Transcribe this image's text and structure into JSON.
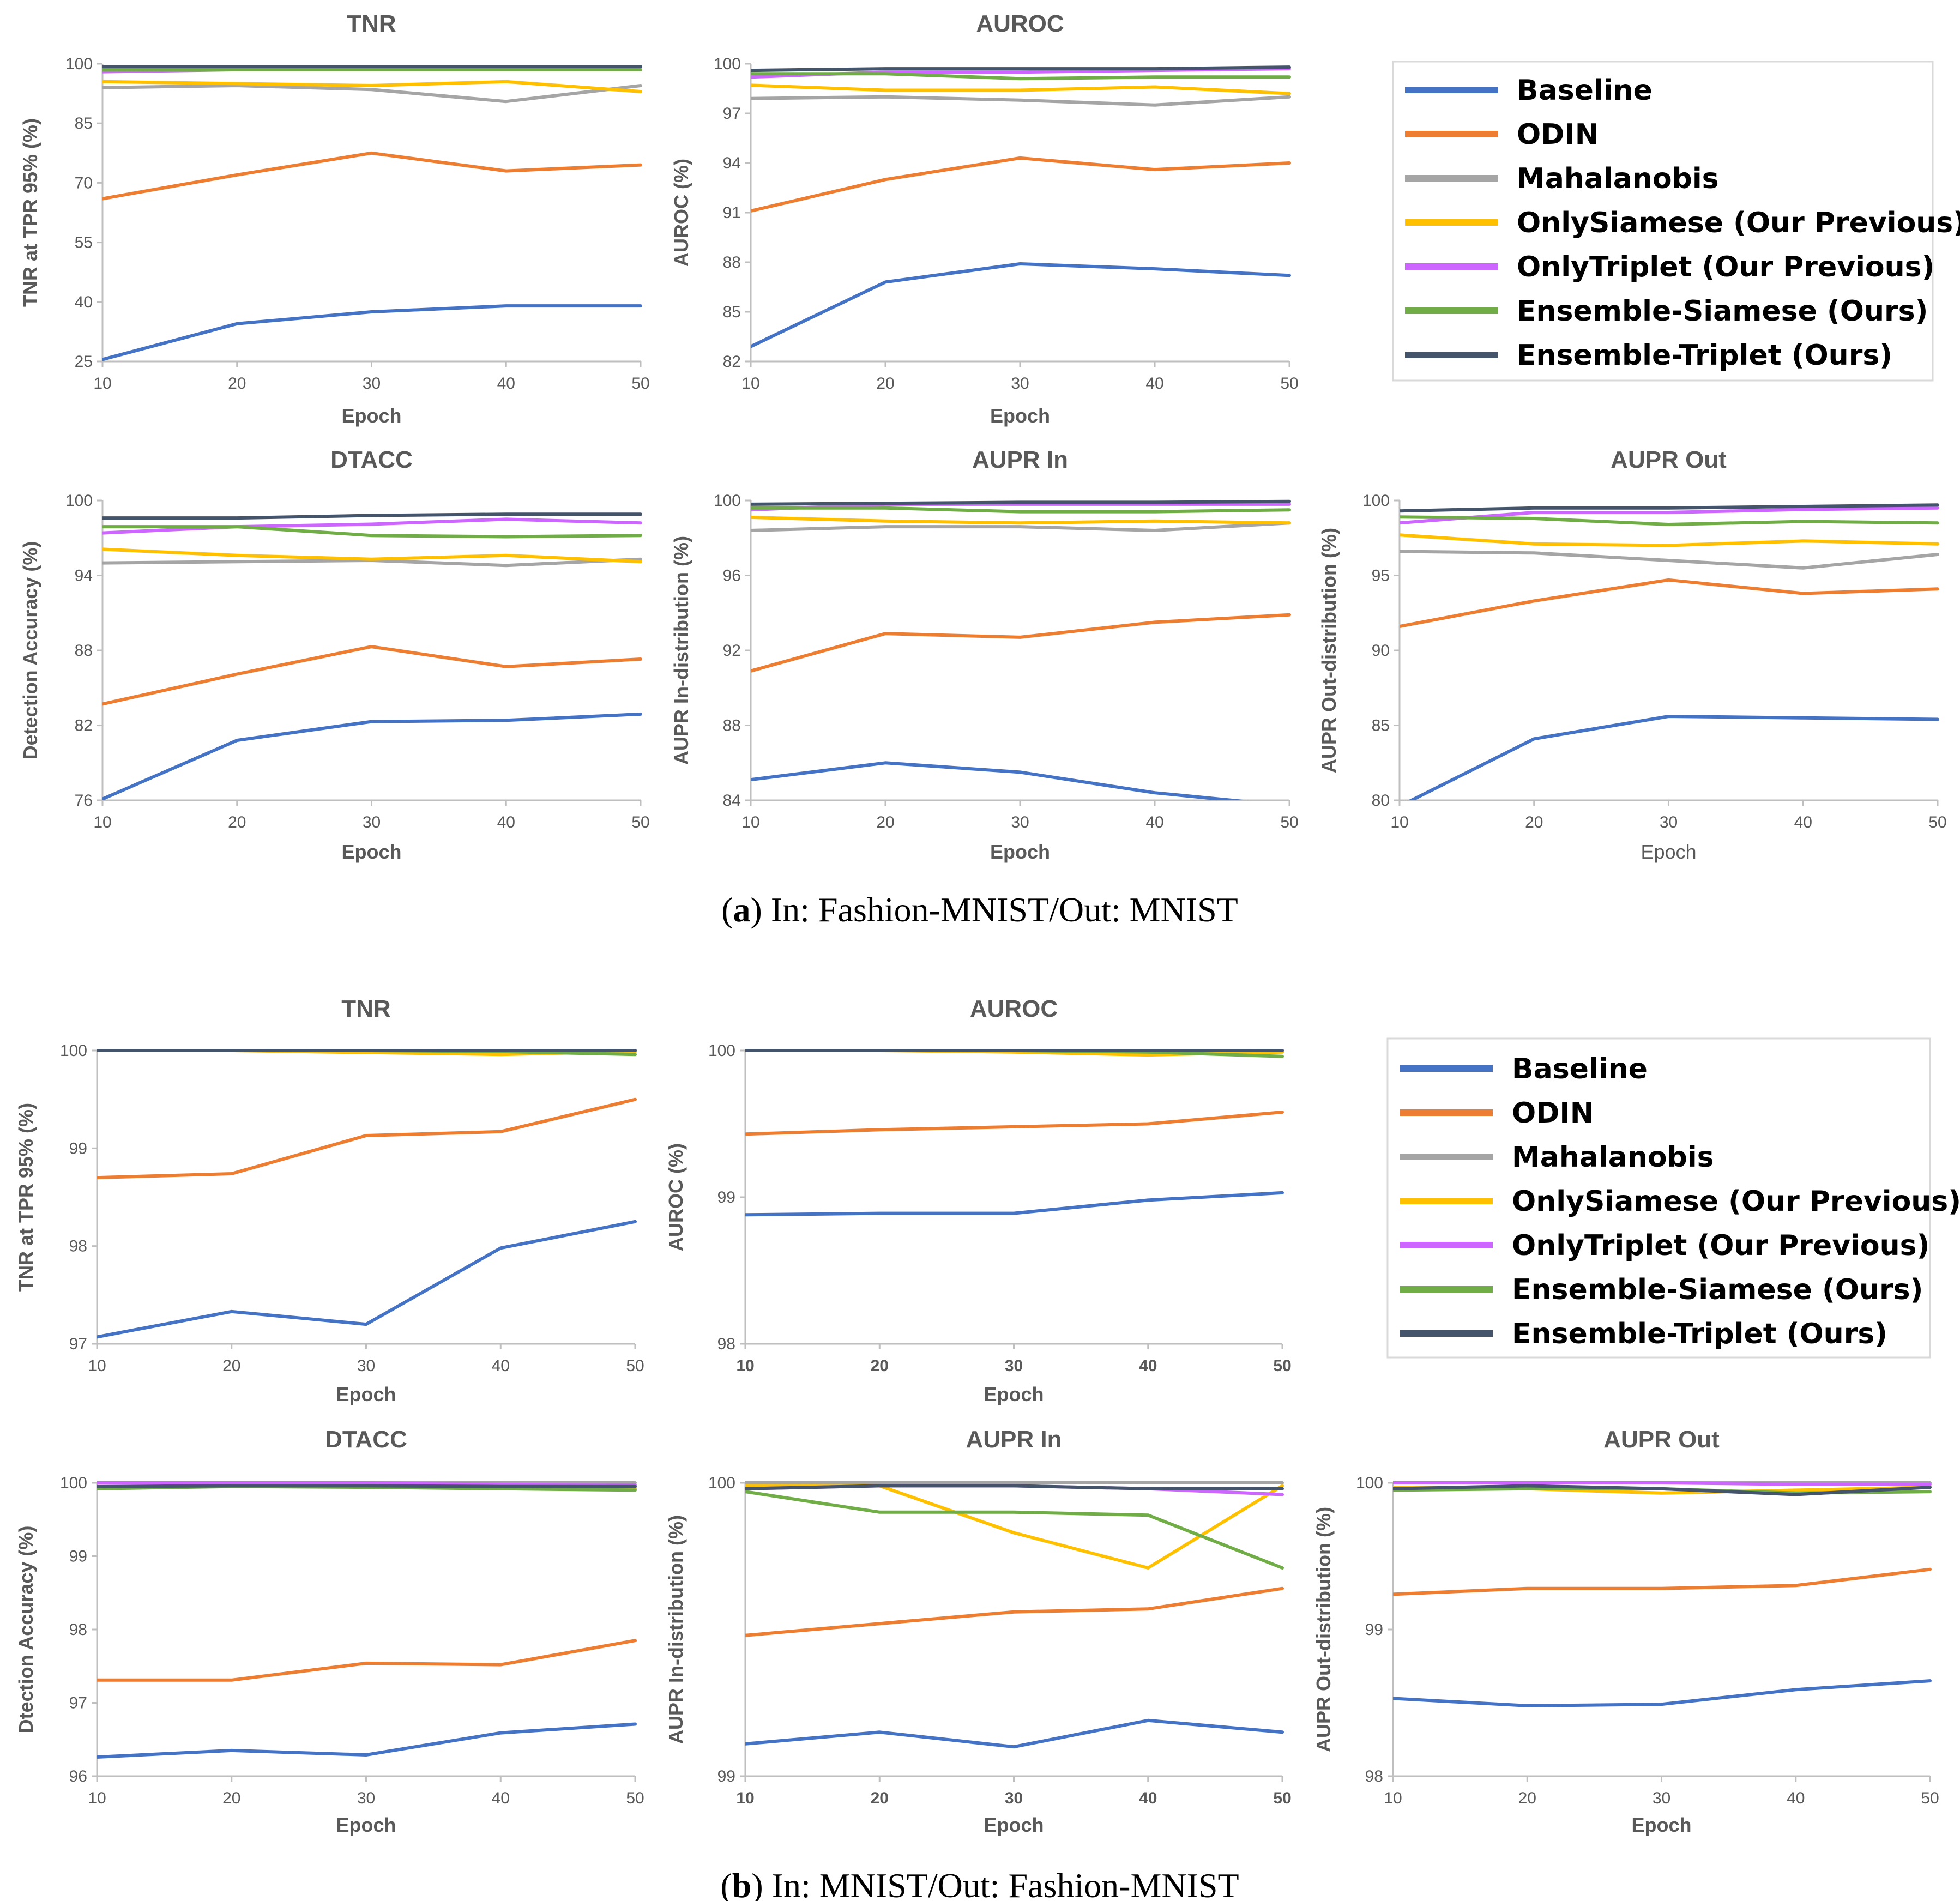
{
  "colors": {
    "Baseline": "#4472C4",
    "ODIN": "#ED7D31",
    "Mahalanobis": "#A5A5A5",
    "OnlySiamese (Our Previous)": "#FFC000",
    "OnlyTriplet (Our Previous)": "#CC66FF",
    "Ensemble-Siamese (Ours)": "#70AD47",
    "Ensemble-Triplet (Ours)": "#44546A"
  },
  "legend": {
    "items": [
      "Baseline",
      "ODIN",
      "Mahalanobis",
      "OnlySiamese (Our Previous)",
      "OnlyTriplet (Our Previous)",
      "Ensemble-Siamese (Ours)",
      "Ensemble-Triplet (Ours)"
    ]
  },
  "captions": {
    "a": {
      "label": "a",
      "text": "In: Fashion-MNIST/Out: MNIST"
    },
    "b": {
      "label": "b",
      "text": "In: MNIST/Out: Fashion-MNIST"
    }
  },
  "chart_data": [
    {
      "id": "a-tnr",
      "type": "line",
      "title": "TNR",
      "xlabel": "Epoch",
      "ylabel": "TNR at TPR 95% (%)",
      "x": [
        10,
        20,
        30,
        40,
        50
      ],
      "ylim": [
        25,
        100
      ],
      "yticks": [
        25,
        40,
        55,
        70,
        85,
        100
      ],
      "series": [
        {
          "name": "Baseline",
          "values": [
            25.5,
            34.5,
            37.5,
            39,
            39
          ]
        },
        {
          "name": "ODIN",
          "values": [
            66,
            72,
            77.5,
            73,
            74.5
          ]
        },
        {
          "name": "Mahalanobis",
          "values": [
            94,
            94.5,
            93.5,
            90.5,
            94.5
          ]
        },
        {
          "name": "OnlySiamese (Our Previous)",
          "values": [
            95.5,
            95,
            94.5,
            95.5,
            93
          ]
        },
        {
          "name": "OnlyTriplet (Our Previous)",
          "values": [
            98,
            98.5,
            98.5,
            98.5,
            98.5
          ]
        },
        {
          "name": "Ensemble-Siamese (Ours)",
          "values": [
            98.5,
            98.5,
            98.5,
            98.5,
            98.5
          ]
        },
        {
          "name": "Ensemble-Triplet (Ours)",
          "values": [
            99.3,
            99.3,
            99.3,
            99.3,
            99.3
          ]
        }
      ]
    },
    {
      "id": "a-auroc",
      "type": "line",
      "title": "AUROC",
      "xlabel": "Epoch",
      "ylabel": "AUROC (%)",
      "x": [
        10,
        20,
        30,
        40,
        50
      ],
      "ylim": [
        82,
        100
      ],
      "yticks": [
        82,
        85,
        88,
        91,
        94,
        97,
        100
      ],
      "series": [
        {
          "name": "Baseline",
          "values": [
            82.9,
            86.8,
            87.9,
            87.6,
            87.2
          ]
        },
        {
          "name": "ODIN",
          "values": [
            91.1,
            93,
            94.3,
            93.6,
            94
          ]
        },
        {
          "name": "Mahalanobis",
          "values": [
            97.9,
            98,
            97.8,
            97.5,
            98
          ]
        },
        {
          "name": "OnlySiamese (Our Previous)",
          "values": [
            98.7,
            98.4,
            98.4,
            98.6,
            98.2
          ]
        },
        {
          "name": "OnlyTriplet (Our Previous)",
          "values": [
            99.2,
            99.5,
            99.5,
            99.6,
            99.7
          ]
        },
        {
          "name": "Ensemble-Siamese (Ours)",
          "values": [
            99.4,
            99.4,
            99.1,
            99.2,
            99.2
          ]
        },
        {
          "name": "Ensemble-Triplet (Ours)",
          "values": [
            99.6,
            99.7,
            99.7,
            99.7,
            99.8
          ]
        }
      ]
    },
    {
      "id": "a-dtacc",
      "type": "line",
      "title": "DTACC",
      "xlabel": "Epoch",
      "ylabel": "Detection Accuracy (%)",
      "x": [
        10,
        20,
        30,
        40,
        50
      ],
      "ylim": [
        76,
        100
      ],
      "yticks": [
        76,
        82,
        88,
        94,
        100
      ],
      "series": [
        {
          "name": "Baseline",
          "values": [
            76.1,
            80.8,
            82.3,
            82.4,
            82.9
          ]
        },
        {
          "name": "ODIN",
          "values": [
            83.7,
            86.1,
            88.3,
            86.7,
            87.3
          ]
        },
        {
          "name": "Mahalanobis",
          "values": [
            95,
            95.1,
            95.2,
            94.8,
            95.3
          ]
        },
        {
          "name": "OnlySiamese (Our Previous)",
          "values": [
            96.1,
            95.6,
            95.3,
            95.6,
            95.1
          ]
        },
        {
          "name": "OnlyTriplet (Our Previous)",
          "values": [
            97.4,
            97.9,
            98.1,
            98.5,
            98.2
          ]
        },
        {
          "name": "Ensemble-Siamese (Ours)",
          "values": [
            97.9,
            97.9,
            97.2,
            97.1,
            97.2
          ]
        },
        {
          "name": "Ensemble-Triplet (Ours)",
          "values": [
            98.6,
            98.6,
            98.8,
            98.9,
            98.9
          ]
        }
      ]
    },
    {
      "id": "a-auprin",
      "type": "line",
      "title": "AUPR In",
      "xlabel": "Epoch",
      "ylabel": "AUPR In-distribution (%)",
      "x": [
        10,
        20,
        30,
        40,
        50
      ],
      "ylim": [
        84,
        100
      ],
      "yticks": [
        84,
        88,
        92,
        96,
        100
      ],
      "series": [
        {
          "name": "Baseline",
          "values": [
            85.1,
            86,
            85.5,
            84.4,
            83.7
          ]
        },
        {
          "name": "ODIN",
          "values": [
            90.9,
            92.9,
            92.7,
            93.5,
            93.9
          ]
        },
        {
          "name": "Mahalanobis",
          "values": [
            98.4,
            98.6,
            98.6,
            98.4,
            98.8
          ]
        },
        {
          "name": "OnlySiamese (Our Previous)",
          "values": [
            99.1,
            98.9,
            98.8,
            98.9,
            98.8
          ]
        },
        {
          "name": "OnlyTriplet (Our Previous)",
          "values": [
            99.5,
            99.8,
            99.8,
            99.8,
            99.8
          ]
        },
        {
          "name": "Ensemble-Siamese (Ours)",
          "values": [
            99.6,
            99.6,
            99.4,
            99.4,
            99.5
          ]
        },
        {
          "name": "Ensemble-Triplet (Ours)",
          "values": [
            99.8,
            99.85,
            99.9,
            99.9,
            99.95
          ]
        }
      ]
    },
    {
      "id": "a-auprout",
      "type": "line",
      "title": "AUPR Out",
      "xlabel": "Epoch",
      "xlabel_bold": false,
      "ylabel": "AUPR Out-distribution (%)",
      "x": [
        10,
        20,
        30,
        40,
        50
      ],
      "ylim": [
        80,
        100
      ],
      "yticks": [
        80,
        85,
        90,
        95,
        100
      ],
      "series": [
        {
          "name": "Baseline",
          "values": [
            79.6,
            84.1,
            85.6,
            85.5,
            85.4
          ]
        },
        {
          "name": "ODIN",
          "values": [
            91.6,
            93.3,
            94.7,
            93.8,
            94.1
          ]
        },
        {
          "name": "Mahalanobis",
          "values": [
            96.6,
            96.5,
            96,
            95.5,
            96.4
          ]
        },
        {
          "name": "OnlySiamese (Our Previous)",
          "values": [
            97.7,
            97.1,
            97,
            97.3,
            97.1
          ]
        },
        {
          "name": "OnlyTriplet (Our Previous)",
          "values": [
            98.5,
            99.2,
            99.2,
            99.4,
            99.5
          ]
        },
        {
          "name": "Ensemble-Siamese (Ours)",
          "values": [
            98.9,
            98.8,
            98.4,
            98.6,
            98.5
          ]
        },
        {
          "name": "Ensemble-Triplet (Ours)",
          "values": [
            99.3,
            99.5,
            99.5,
            99.6,
            99.7
          ]
        }
      ]
    },
    {
      "id": "b-tnr",
      "type": "line",
      "title": "TNR",
      "xlabel": "Epoch",
      "ylabel": "TNR at TPR 95% (%)",
      "x": [
        10,
        20,
        30,
        40,
        50
      ],
      "ylim": [
        97,
        100
      ],
      "yticks": [
        97,
        98,
        99,
        100
      ],
      "series": [
        {
          "name": "Baseline",
          "values": [
            97.07,
            97.33,
            97.2,
            97.98,
            98.25
          ]
        },
        {
          "name": "ODIN",
          "values": [
            98.7,
            98.74,
            99.13,
            99.17,
            99.5
          ]
        },
        {
          "name": "Mahalanobis",
          "values": [
            100,
            100,
            100,
            100,
            100
          ]
        },
        {
          "name": "OnlySiamese (Our Previous)",
          "values": [
            100,
            100,
            99.98,
            99.96,
            99.99
          ]
        },
        {
          "name": "OnlyTriplet (Our Previous)",
          "values": [
            100,
            100,
            100,
            100,
            100
          ]
        },
        {
          "name": "Ensemble-Siamese (Ours)",
          "values": [
            100,
            100,
            100,
            99.99,
            99.96
          ]
        },
        {
          "name": "Ensemble-Triplet (Ours)",
          "values": [
            100,
            100,
            100,
            100,
            100
          ]
        }
      ]
    },
    {
      "id": "b-auroc",
      "type": "line",
      "title": "AUROC",
      "xlabel": "Epoch",
      "xtick_bold": true,
      "ylabel": "AUROC (%)",
      "x": [
        10,
        20,
        30,
        40,
        50
      ],
      "ylim": [
        98,
        100
      ],
      "yticks": [
        98,
        99,
        100
      ],
      "series": [
        {
          "name": "Baseline",
          "values": [
            98.88,
            98.89,
            98.89,
            98.98,
            99.03
          ]
        },
        {
          "name": "ODIN",
          "values": [
            99.43,
            99.46,
            99.48,
            99.5,
            99.58
          ]
        },
        {
          "name": "Mahalanobis",
          "values": [
            100,
            100,
            100,
            100,
            100
          ]
        },
        {
          "name": "OnlySiamese (Our Previous)",
          "values": [
            100,
            100,
            99.99,
            99.97,
            99.99
          ]
        },
        {
          "name": "OnlyTriplet (Our Previous)",
          "values": [
            100,
            100,
            100,
            100,
            100
          ]
        },
        {
          "name": "Ensemble-Siamese (Ours)",
          "values": [
            100,
            100,
            100,
            99.99,
            99.96
          ]
        },
        {
          "name": "Ensemble-Triplet (Ours)",
          "values": [
            100,
            100,
            100,
            100,
            100
          ]
        }
      ]
    },
    {
      "id": "b-dtacc",
      "type": "line",
      "title": "DTACC",
      "xlabel": "Epoch",
      "ylabel": "Dtection Accuracy (%)",
      "x": [
        10,
        20,
        30,
        40,
        50
      ],
      "ylim": [
        96,
        100
      ],
      "yticks": [
        96,
        97,
        98,
        99,
        100
      ],
      "series": [
        {
          "name": "Baseline",
          "values": [
            96.26,
            96.35,
            96.29,
            96.59,
            96.71
          ]
        },
        {
          "name": "ODIN",
          "values": [
            97.31,
            97.31,
            97.54,
            97.52,
            97.85
          ]
        },
        {
          "name": "Mahalanobis",
          "values": [
            100,
            100,
            100,
            100,
            100
          ]
        },
        {
          "name": "OnlySiamese (Our Previous)",
          "values": [
            100,
            100,
            99.97,
            99.96,
            99.92
          ]
        },
        {
          "name": "OnlyTriplet (Our Previous)",
          "values": [
            100,
            100,
            100,
            99.98,
            99.97
          ]
        },
        {
          "name": "Ensemble-Siamese (Ours)",
          "values": [
            99.92,
            99.95,
            99.94,
            99.92,
            99.9
          ]
        },
        {
          "name": "Ensemble-Triplet (Ours)",
          "values": [
            99.95,
            99.96,
            99.96,
            99.95,
            99.95
          ]
        }
      ]
    },
    {
      "id": "b-auprin",
      "type": "line",
      "title": "AUPR In",
      "xlabel": "Epoch",
      "xtick_bold": true,
      "ylabel": "AUPR In-distribution (%)",
      "x": [
        10,
        20,
        30,
        40,
        50
      ],
      "ylim": [
        99,
        100
      ],
      "yticks": [
        99,
        100
      ],
      "series": [
        {
          "name": "Baseline",
          "values": [
            99.11,
            99.15,
            99.1,
            99.19,
            99.15
          ]
        },
        {
          "name": "ODIN",
          "values": [
            99.48,
            99.52,
            99.56,
            99.57,
            99.64
          ]
        },
        {
          "name": "Mahalanobis",
          "values": [
            100,
            100,
            100,
            100,
            100
          ]
        },
        {
          "name": "OnlySiamese (Our Previous)",
          "values": [
            99.99,
            99.99,
            99.83,
            99.71,
            99.99
          ]
        },
        {
          "name": "OnlyTriplet (Our Previous)",
          "values": [
            99.98,
            99.99,
            99.99,
            99.98,
            99.96
          ]
        },
        {
          "name": "Ensemble-Siamese (Ours)",
          "values": [
            99.97,
            99.9,
            99.9,
            99.89,
            99.71
          ]
        },
        {
          "name": "Ensemble-Triplet (Ours)",
          "values": [
            99.98,
            99.99,
            99.99,
            99.98,
            99.98
          ]
        }
      ]
    },
    {
      "id": "b-auprout",
      "type": "line",
      "title": "AUPR Out",
      "xlabel": "Epoch",
      "ylabel": "AUPR Out-distribution (%)",
      "x": [
        10,
        20,
        30,
        40,
        50
      ],
      "ylim": [
        98,
        100
      ],
      "yticks": [
        98,
        99,
        100
      ],
      "series": [
        {
          "name": "Baseline",
          "values": [
            98.53,
            98.48,
            98.49,
            98.59,
            98.65
          ]
        },
        {
          "name": "ODIN",
          "values": [
            99.24,
            99.28,
            99.28,
            99.3,
            99.41
          ]
        },
        {
          "name": "Mahalanobis",
          "values": [
            100,
            100,
            100,
            100,
            100
          ]
        },
        {
          "name": "OnlySiamese (Our Previous)",
          "values": [
            99.97,
            99.96,
            99.93,
            99.95,
            99.97
          ]
        },
        {
          "name": "OnlyTriplet (Our Previous)",
          "values": [
            100,
            100,
            100,
            99.99,
            99.99
          ]
        },
        {
          "name": "Ensemble-Siamese (Ours)",
          "values": [
            99.95,
            99.96,
            99.96,
            99.93,
            99.94
          ]
        },
        {
          "name": "Ensemble-Triplet (Ours)",
          "values": [
            99.96,
            99.98,
            99.96,
            99.92,
            99.97
          ]
        }
      ]
    }
  ]
}
